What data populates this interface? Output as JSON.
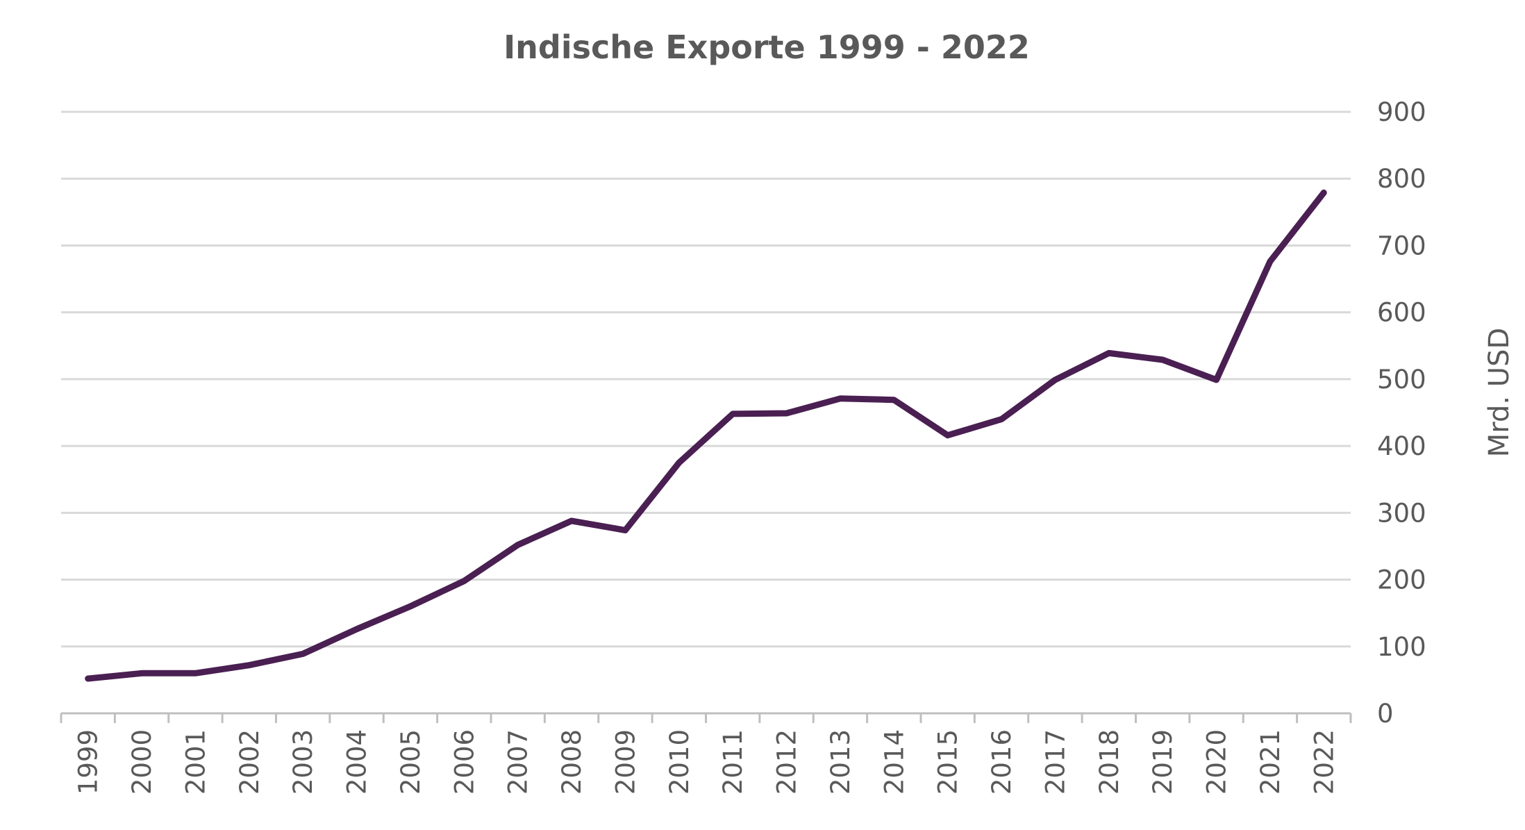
{
  "chart_data": {
    "type": "line",
    "title": "Indische Exporte 1999 - 2022",
    "xlabel": "",
    "ylabel": "Mrd. USD",
    "categories": [
      "1999",
      "2000",
      "2001",
      "2002",
      "2003",
      "2004",
      "2005",
      "2006",
      "2007",
      "2008",
      "2009",
      "2010",
      "2011",
      "2012",
      "2013",
      "2014",
      "2015",
      "2016",
      "2017",
      "2018",
      "2019",
      "2020",
      "2021",
      "2022"
    ],
    "series": [
      {
        "values": [
          52,
          60,
          60,
          72,
          89,
          126,
          160,
          198,
          252,
          288,
          274,
          375,
          448,
          449,
          471,
          469,
          416,
          440,
          499,
          539,
          529,
          499,
          676,
          779
        ]
      }
    ],
    "ylim": [
      0,
      900
    ],
    "yticks": [
      "0",
      "100",
      "200",
      "300",
      "400",
      "500",
      "600",
      "700",
      "800",
      "900"
    ],
    "yaxis_side": "right",
    "grid": true,
    "legend": "none",
    "colors": {
      "line": "#4a1f52",
      "grid": "#d9d9d9",
      "axis": "#bfbfbf",
      "text": "#595959"
    }
  }
}
